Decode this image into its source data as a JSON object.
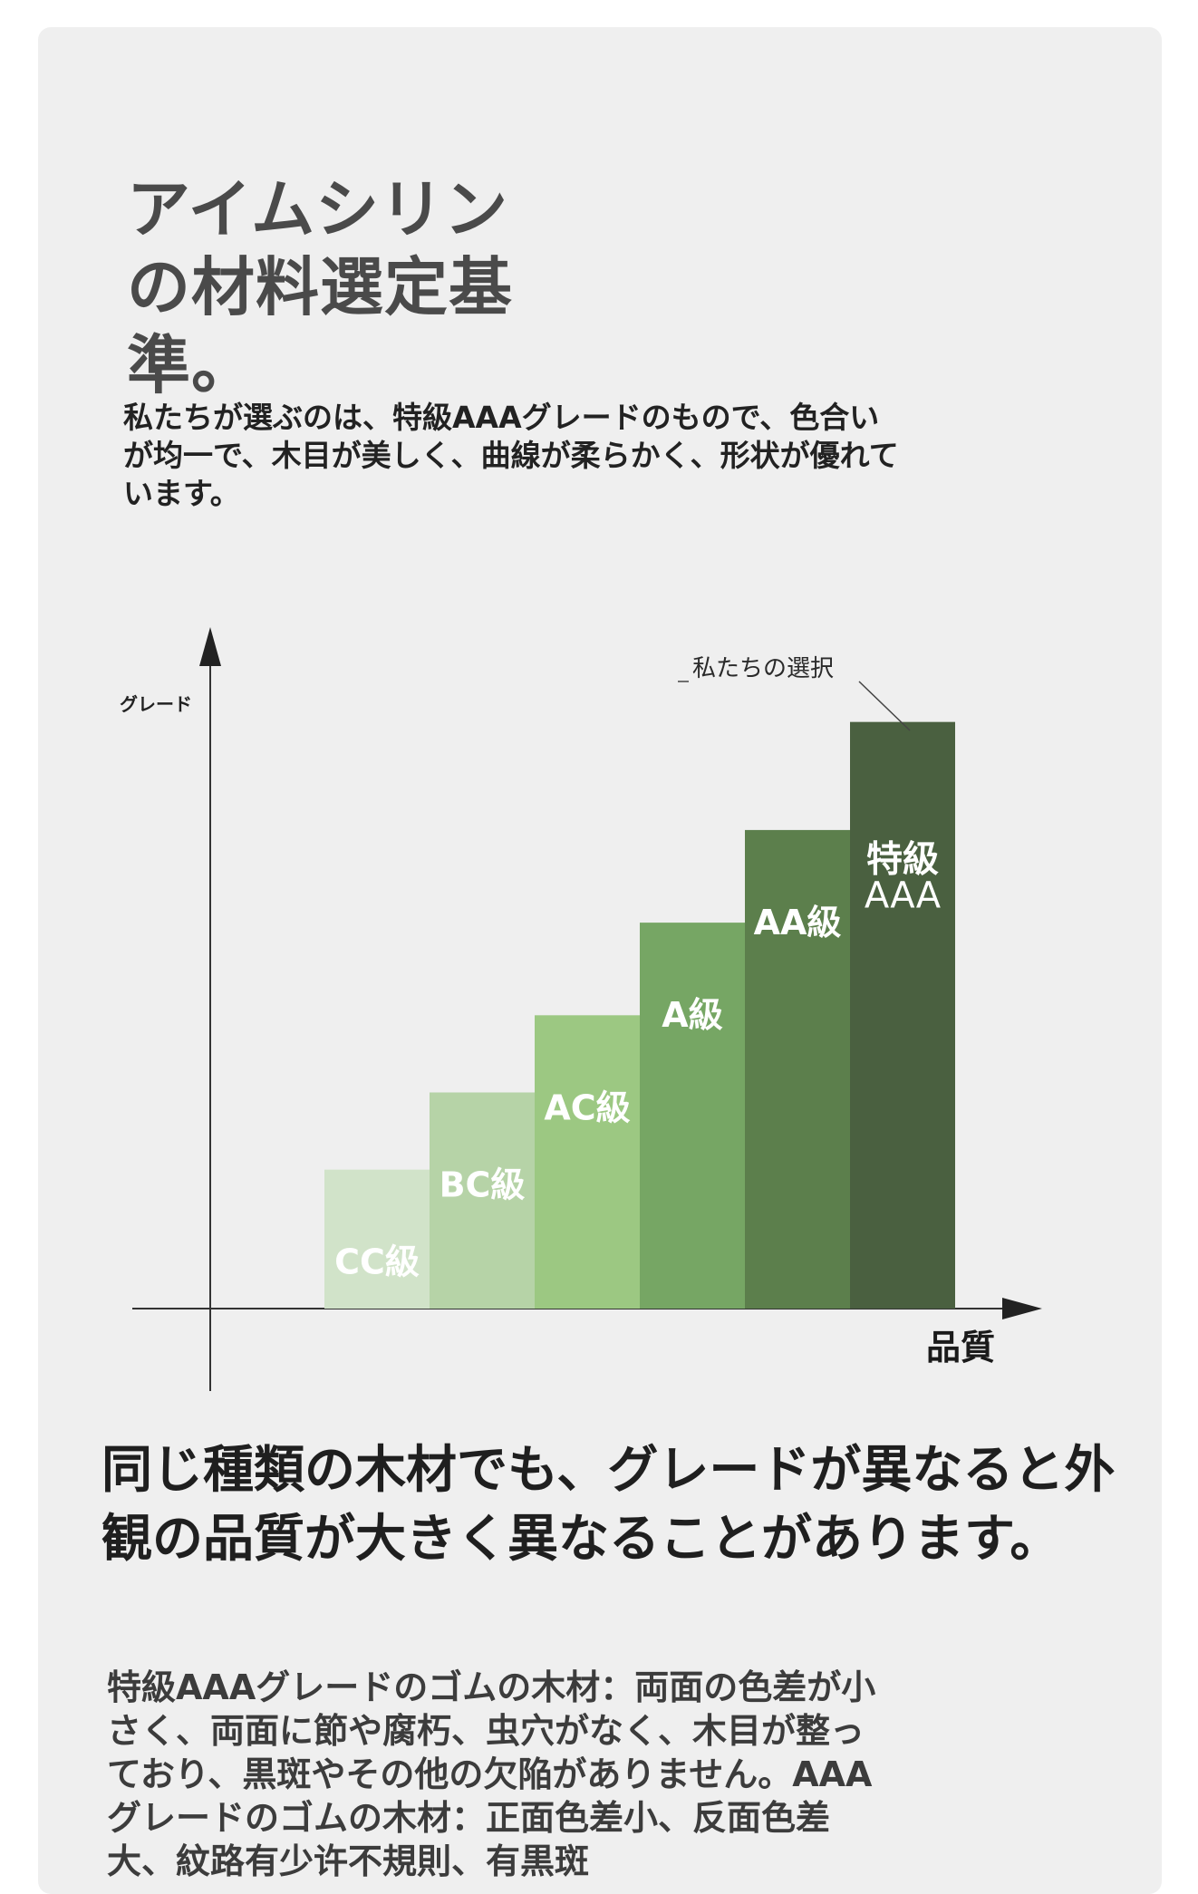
{
  "header": {
    "title": "アイムシリンの材料選定基準。",
    "lead": "私たちが選ぶのは、特級AAAグレードのもので、色合いが均一で、木目が美しく、曲線が柔らかく、形状が優れています。"
  },
  "chart_data": {
    "type": "bar",
    "ylabel": "グレード",
    "xlabel": "品質",
    "annotation": "私たちの選択",
    "categories": [
      "CC級",
      "BC級",
      "AC級",
      "A級",
      "AA級",
      "特級AAA"
    ],
    "values": [
      1.8,
      2.8,
      3.8,
      5.0,
      6.2,
      7.6
    ],
    "colors": [
      "#d1e3c9",
      "#b6d3a7",
      "#9cc882",
      "#76a664",
      "#5c7f4c",
      "#4a6040"
    ],
    "label_colors": [
      "#ffffff",
      "#ffffff",
      "#ffffff",
      "#ffffff",
      "#ffffff",
      "#ffffff"
    ],
    "ylim": [
      0,
      8.5
    ],
    "grid": false,
    "legend": "none"
  },
  "section": {
    "heading": "同じ種類の木材でも、グレードが異なると外観の品質が大きく異なることがあります。",
    "body": "特級AAAグレードのゴムの木材：両面の色差が小さく、両面に節や腐朽、虫穴がなく、木目が整っており、黒斑やその他の欠陥がありません。AAAグレードのゴムの木材：正面色差小、反面色差大、紋路有少许不規則、有黒斑"
  }
}
